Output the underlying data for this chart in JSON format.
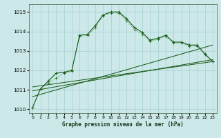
{
  "title": "Graphe pression niveau de la mer (hPa)",
  "background_color": "#cce8e8",
  "grid_color": "#aad4d4",
  "line_color_dark": "#1a5c1a",
  "line_color_med": "#2a7a2a",
  "ylim": [
    1009.8,
    1015.4
  ],
  "yticks": [
    1010,
    1011,
    1012,
    1013,
    1014,
    1015
  ],
  "xlim": [
    -0.5,
    23.5
  ],
  "xticks": [
    0,
    1,
    2,
    3,
    4,
    5,
    6,
    7,
    8,
    9,
    10,
    11,
    12,
    13,
    14,
    15,
    16,
    17,
    18,
    19,
    20,
    21,
    22,
    23
  ],
  "series_main": {
    "x": [
      0,
      1,
      2,
      3,
      4,
      5,
      6,
      7,
      8,
      9,
      10,
      11,
      12,
      13,
      14,
      15,
      16,
      17,
      18,
      19,
      20,
      21,
      22,
      23
    ],
    "y": [
      1010.1,
      1011.05,
      1011.45,
      1011.85,
      1011.9,
      1012.0,
      1013.8,
      1013.85,
      1014.3,
      1014.85,
      1015.0,
      1015.0,
      1014.65,
      1014.2,
      1013.95,
      1013.55,
      1013.65,
      1013.8,
      1013.45,
      1013.45,
      1013.3,
      1013.3,
      1012.85,
      1012.45
    ]
  },
  "series_secondary": {
    "x": [
      0,
      1,
      2,
      3,
      4,
      5,
      6,
      7,
      8,
      9,
      10,
      11,
      12,
      13,
      14,
      15,
      16,
      17,
      18,
      19,
      20,
      21,
      22,
      23
    ],
    "y": [
      1010.1,
      1011.05,
      1011.35,
      1011.6,
      1011.85,
      1011.95,
      1013.75,
      1013.8,
      1014.2,
      1014.8,
      1014.95,
      1014.95,
      1014.55,
      1014.1,
      1013.85,
      1013.5,
      1013.6,
      1013.75,
      1013.4,
      1013.4,
      1013.25,
      1013.25,
      1012.8,
      1012.45
    ]
  },
  "straight_lines": [
    {
      "x": [
        0,
        23
      ],
      "y": [
        1010.65,
        1013.3
      ]
    },
    {
      "x": [
        0,
        23
      ],
      "y": [
        1010.95,
        1012.55
      ]
    },
    {
      "x": [
        0,
        23
      ],
      "y": [
        1011.15,
        1012.45
      ]
    }
  ]
}
